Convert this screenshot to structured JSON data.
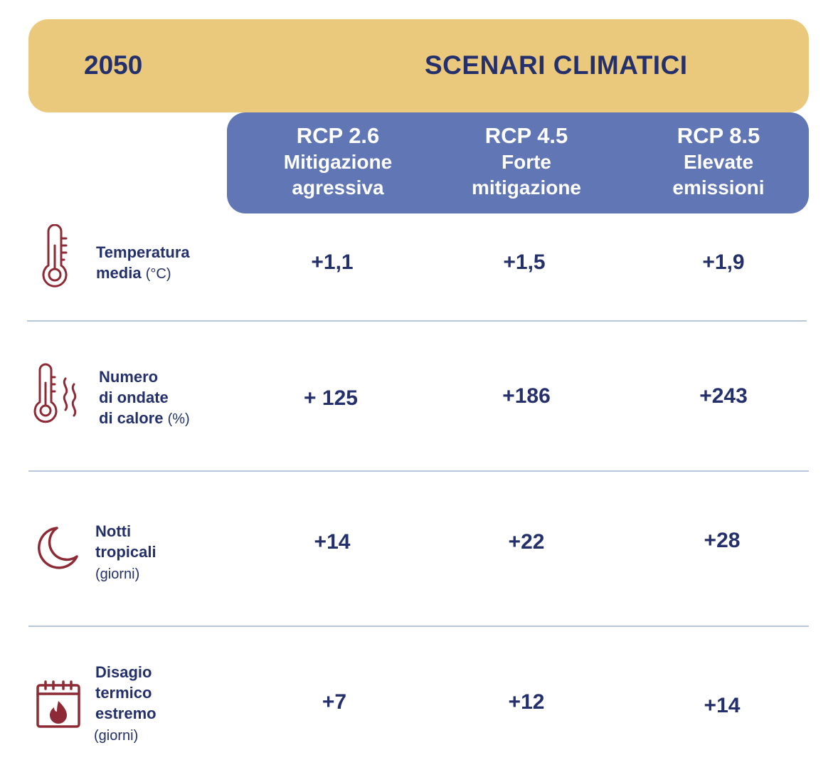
{
  "header": {
    "year": "2050",
    "title": "SCENARI CLIMATICI"
  },
  "scenarios": [
    {
      "code": "RCP 2.6",
      "desc": "Mitigazione\nagressiva"
    },
    {
      "code": "RCP 4.5",
      "desc": "Forte\nmitigazione"
    },
    {
      "code": "RCP 8.5",
      "desc": "Elevate\nemissioni"
    }
  ],
  "rows": [
    {
      "label": "Temperatura\nmedia",
      "unit": "(°C)",
      "icon": "thermometer-icon",
      "values": [
        "+1,1",
        "+1,5",
        "+1,9"
      ]
    },
    {
      "label": "Numero\ndi ondate\ndi calore",
      "unit": "(%)",
      "icon": "heatwave-thermometer-icon",
      "values": [
        "+ 125",
        "+186",
        "+243"
      ]
    },
    {
      "label": "Notti\ntropicali",
      "unit": "(giorni)",
      "icon": "moon-icon",
      "values": [
        "+14",
        "+22",
        "+28"
      ]
    },
    {
      "label": "Disagio\ntermico\nestremo",
      "unit": "(giorni)",
      "icon": "calendar-fire-icon",
      "values": [
        "+7",
        "+12",
        "+14"
      ]
    }
  ],
  "colors": {
    "banner": "#ebc97c",
    "scenario_header": "#6176b5",
    "text": "#24306b",
    "icon": "#8e2a35",
    "divider": "#b9c7dc"
  }
}
